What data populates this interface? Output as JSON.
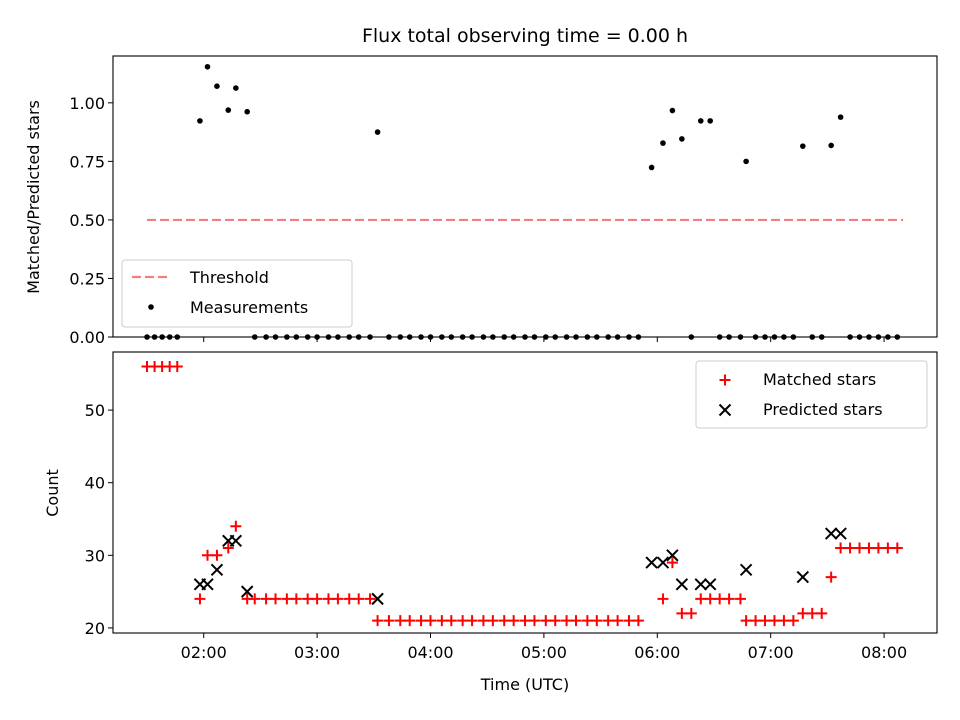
{
  "chart_data": [
    {
      "type": "scatter",
      "title": "Flux total observing time = 0.00 h",
      "xlabel": "",
      "ylabel": "Matched/Predicted stars",
      "xlim": [
        "01:12",
        "08:28"
      ],
      "ylim": [
        0,
        1.2
      ],
      "yticks": [
        "0.00",
        "0.25",
        "0.50",
        "0.75",
        "1.00"
      ],
      "xticks": [
        "02:00",
        "03:00",
        "04:00",
        "05:00",
        "06:00",
        "07:00",
        "08:00"
      ],
      "grid": false,
      "legend": {
        "placement": "lower-left",
        "entries": [
          "Threshold",
          "Measurements"
        ]
      },
      "threshold": {
        "name": "Threshold",
        "y": 0.5,
        "x_start": "01:30",
        "x_end": "08:10",
        "color": "#f08080",
        "style": "dashed"
      },
      "series": [
        {
          "name": "Measurements",
          "color": "#000000",
          "marker": "dot",
          "points": [
            [
              "01:30",
              0
            ],
            [
              "01:34",
              0
            ],
            [
              "01:38",
              0
            ],
            [
              "01:42",
              0
            ],
            [
              "01:46",
              0
            ],
            [
              "01:58",
              0.923
            ],
            [
              "02:02",
              1.154
            ],
            [
              "02:07",
              1.071
            ],
            [
              "02:13",
              0.969
            ],
            [
              "02:17",
              1.063
            ],
            [
              "02:23",
              0.962
            ],
            [
              "02:27",
              0
            ],
            [
              "02:33",
              0
            ],
            [
              "02:38",
              0
            ],
            [
              "02:44",
              0
            ],
            [
              "02:49",
              0
            ],
            [
              "02:55",
              0
            ],
            [
              "03:00",
              0
            ],
            [
              "03:06",
              0
            ],
            [
              "03:11",
              0
            ],
            [
              "03:17",
              0
            ],
            [
              "03:22",
              0
            ],
            [
              "03:28",
              0
            ],
            [
              "03:32",
              0.875
            ],
            [
              "03:38",
              0
            ],
            [
              "03:44",
              0
            ],
            [
              "03:49",
              0
            ],
            [
              "03:55",
              0
            ],
            [
              "04:00",
              0
            ],
            [
              "04:06",
              0
            ],
            [
              "04:11",
              0
            ],
            [
              "04:17",
              0
            ],
            [
              "04:22",
              0
            ],
            [
              "04:28",
              0
            ],
            [
              "04:33",
              0
            ],
            [
              "04:39",
              0
            ],
            [
              "04:44",
              0
            ],
            [
              "04:50",
              0
            ],
            [
              "04:55",
              0
            ],
            [
              "05:01",
              0
            ],
            [
              "05:06",
              0
            ],
            [
              "05:12",
              0
            ],
            [
              "05:17",
              0
            ],
            [
              "05:23",
              0
            ],
            [
              "05:28",
              0
            ],
            [
              "05:34",
              0
            ],
            [
              "05:39",
              0
            ],
            [
              "05:45",
              0
            ],
            [
              "05:50",
              0
            ],
            [
              "05:57",
              0.724
            ],
            [
              "06:03",
              0.828
            ],
            [
              "06:08",
              0.967
            ],
            [
              "06:13",
              0.846
            ],
            [
              "06:23",
              0.923
            ],
            [
              "06:28",
              0.923
            ],
            [
              "06:18",
              0
            ],
            [
              "06:33",
              0
            ],
            [
              "06:38",
              0
            ],
            [
              "06:44",
              0
            ],
            [
              "06:47",
              0.75
            ],
            [
              "06:52",
              0
            ],
            [
              "06:57",
              0
            ],
            [
              "07:02",
              0
            ],
            [
              "07:07",
              0
            ],
            [
              "07:12",
              0
            ],
            [
              "07:17",
              0.815
            ],
            [
              "07:22",
              0
            ],
            [
              "07:27",
              0
            ],
            [
              "07:32",
              0.818
            ],
            [
              "07:37",
              0.939
            ],
            [
              "07:42",
              0
            ],
            [
              "07:47",
              0
            ],
            [
              "07:52",
              0
            ],
            [
              "07:57",
              0
            ],
            [
              "08:02",
              0
            ],
            [
              "08:07",
              0
            ]
          ]
        }
      ]
    },
    {
      "type": "scatter",
      "title": "",
      "xlabel": "Time (UTC)",
      "ylabel": "Count",
      "xlim": [
        "01:12",
        "08:28"
      ],
      "ylim": [
        19.3,
        58.0
      ],
      "yticks": [
        "20",
        "30",
        "40",
        "50"
      ],
      "xticks": [
        "02:00",
        "03:00",
        "04:00",
        "05:00",
        "06:00",
        "07:00",
        "08:00"
      ],
      "grid": false,
      "legend": {
        "placement": "top-right",
        "entries": [
          "Matched stars",
          "Predicted stars"
        ]
      },
      "series": [
        {
          "name": "Matched stars",
          "color": "#ff0000",
          "marker": "plus",
          "points": [
            [
              "01:30",
              56
            ],
            [
              "01:34",
              56
            ],
            [
              "01:38",
              56
            ],
            [
              "01:42",
              56
            ],
            [
              "01:46",
              56
            ],
            [
              "01:58",
              24
            ],
            [
              "02:02",
              30
            ],
            [
              "02:07",
              30
            ],
            [
              "02:13",
              31
            ],
            [
              "02:17",
              34
            ],
            [
              "02:23",
              24
            ],
            [
              "02:27",
              24
            ],
            [
              "02:33",
              24
            ],
            [
              "02:38",
              24
            ],
            [
              "02:44",
              24
            ],
            [
              "02:49",
              24
            ],
            [
              "02:55",
              24
            ],
            [
              "03:00",
              24
            ],
            [
              "03:06",
              24
            ],
            [
              "03:11",
              24
            ],
            [
              "03:17",
              24
            ],
            [
              "03:22",
              24
            ],
            [
              "03:28",
              24
            ],
            [
              "03:32",
              21
            ],
            [
              "03:38",
              21
            ],
            [
              "03:44",
              21
            ],
            [
              "03:49",
              21
            ],
            [
              "03:55",
              21
            ],
            [
              "04:00",
              21
            ],
            [
              "04:06",
              21
            ],
            [
              "04:11",
              21
            ],
            [
              "04:17",
              21
            ],
            [
              "04:22",
              21
            ],
            [
              "04:28",
              21
            ],
            [
              "04:33",
              21
            ],
            [
              "04:39",
              21
            ],
            [
              "04:44",
              21
            ],
            [
              "04:50",
              21
            ],
            [
              "04:55",
              21
            ],
            [
              "05:01",
              21
            ],
            [
              "05:06",
              21
            ],
            [
              "05:12",
              21
            ],
            [
              "05:17",
              21
            ],
            [
              "05:23",
              21
            ],
            [
              "05:28",
              21
            ],
            [
              "05:34",
              21
            ],
            [
              "05:39",
              21
            ],
            [
              "05:45",
              21
            ],
            [
              "05:50",
              21
            ],
            [
              "06:03",
              24
            ],
            [
              "06:08",
              29
            ],
            [
              "06:13",
              22
            ],
            [
              "06:18",
              22
            ],
            [
              "06:23",
              24
            ],
            [
              "06:28",
              24
            ],
            [
              "06:33",
              24
            ],
            [
              "06:38",
              24
            ],
            [
              "06:44",
              24
            ],
            [
              "06:47",
              21
            ],
            [
              "06:52",
              21
            ],
            [
              "06:57",
              21
            ],
            [
              "07:02",
              21
            ],
            [
              "07:07",
              21
            ],
            [
              "07:12",
              21
            ],
            [
              "07:17",
              22
            ],
            [
              "07:22",
              22
            ],
            [
              "07:27",
              22
            ],
            [
              "07:32",
              27
            ],
            [
              "07:37",
              31
            ],
            [
              "07:42",
              31
            ],
            [
              "07:47",
              31
            ],
            [
              "07:52",
              31
            ],
            [
              "07:57",
              31
            ],
            [
              "08:02",
              31
            ],
            [
              "08:07",
              31
            ]
          ]
        },
        {
          "name": "Predicted stars",
          "color": "#000000",
          "marker": "x",
          "points": [
            [
              "01:58",
              26
            ],
            [
              "02:02",
              26
            ],
            [
              "02:07",
              28
            ],
            [
              "02:13",
              32
            ],
            [
              "02:17",
              32
            ],
            [
              "02:23",
              25
            ],
            [
              "03:32",
              24
            ],
            [
              "05:57",
              29
            ],
            [
              "06:03",
              29
            ],
            [
              "06:08",
              30
            ],
            [
              "06:13",
              26
            ],
            [
              "06:23",
              26
            ],
            [
              "06:28",
              26
            ],
            [
              "06:47",
              28
            ],
            [
              "07:17",
              27
            ],
            [
              "07:32",
              33
            ],
            [
              "07:37",
              33
            ]
          ]
        }
      ]
    }
  ]
}
